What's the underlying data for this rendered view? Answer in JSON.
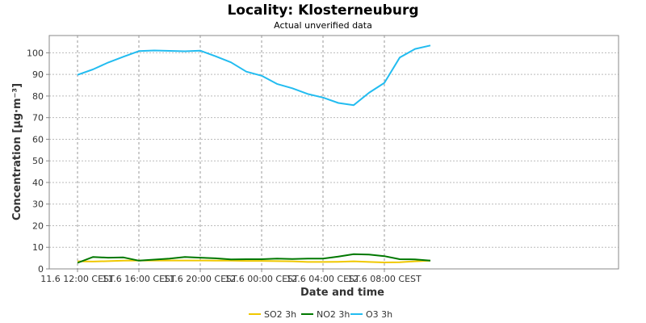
{
  "chart_data": {
    "type": "line",
    "title": "Locality: Klosterneuburg",
    "subtitle": "Actual unverified data",
    "xlabel": "Date and time",
    "ylabel": "Concentration [µg·m⁻³]",
    "ylim": [
      0,
      108
    ],
    "yticks": [
      0,
      10,
      20,
      30,
      40,
      50,
      60,
      70,
      80,
      90,
      100
    ],
    "x": [
      "11.6 12:00",
      "11.6 13:00",
      "11.6 14:00",
      "11.6 15:00",
      "11.6 16:00",
      "11.6 17:00",
      "11.6 18:00",
      "11.6 19:00",
      "11.6 20:00",
      "11.6 21:00",
      "11.6 22:00",
      "11.6 23:00",
      "12.6 00:00",
      "12.6 01:00",
      "12.6 02:00",
      "12.6 03:00",
      "12.6 04:00",
      "12.6 05:00",
      "12.6 06:00",
      "12.6 07:00",
      "12.6 08:00",
      "12.6 09:00",
      "12.6 10:00",
      "12.6 11:00"
    ],
    "xticks": [
      {
        "index": 0,
        "label": "11.6 12:00 CEST"
      },
      {
        "index": 4,
        "label": "11.6 16:00 CEST"
      },
      {
        "index": 8,
        "label": "11.6 20:00 CEST"
      },
      {
        "index": 12,
        "label": "12.6 00:00 CEST"
      },
      {
        "index": 16,
        "label": "12.6 04:00 CEST"
      },
      {
        "index": 20,
        "label": "12.6 08:00 CEST"
      }
    ],
    "grid": true,
    "legend_position": "bottom",
    "series": [
      {
        "name": "SO2 3h",
        "color": "#f0c800",
        "values": [
          3.5,
          3.4,
          3.6,
          3.8,
          3.9,
          3.9,
          3.9,
          3.9,
          3.9,
          3.8,
          3.8,
          3.7,
          3.7,
          3.6,
          3.5,
          3.2,
          3.2,
          3.3,
          3.5,
          3.2,
          3.0,
          3.1,
          3.5,
          3.8
        ]
      },
      {
        "name": "NO2 3h",
        "color": "#007800",
        "values": [
          2.8,
          5.5,
          5.2,
          5.3,
          3.8,
          4.3,
          4.8,
          5.5,
          5.2,
          4.9,
          4.4,
          4.5,
          4.5,
          4.8,
          4.6,
          4.8,
          4.8,
          5.7,
          6.8,
          6.6,
          5.9,
          4.5,
          4.4,
          3.8
        ]
      },
      {
        "name": "O3 3h",
        "color": "#22bcf0",
        "values": [
          89.8,
          92.3,
          95.5,
          98.2,
          100.8,
          101.1,
          100.9,
          100.7,
          101.0,
          98.4,
          95.6,
          91.3,
          89.4,
          85.6,
          83.6,
          81.0,
          79.3,
          76.8,
          75.8,
          81.5,
          86.1,
          97.8,
          101.8,
          103.4
        ]
      }
    ]
  }
}
